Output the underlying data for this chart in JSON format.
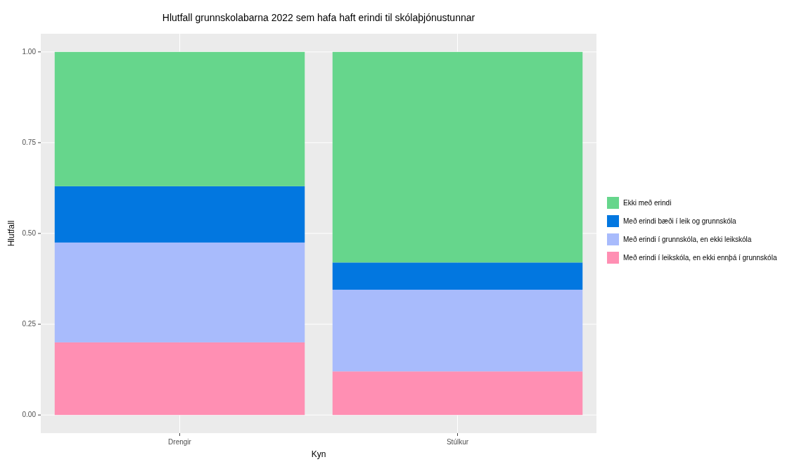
{
  "chart_data": {
    "type": "bar",
    "title": "Hlutfall grunnskolabarna 2022 sem hafa haft erindi til skólaþjónustunnar",
    "xlabel": "Kyn",
    "ylabel": "Hlutfall",
    "categories": [
      "Drengir",
      "Stúlkur"
    ],
    "stacked": true,
    "series": [
      {
        "name": "Með erindi í leikskóla, en ekki ennþá í grunnskóla",
        "color": "#ff8fb3",
        "values": [
          0.2,
          0.12
        ]
      },
      {
        "name": "Með erindi í grunnskóla, en ekki leikskóla",
        "color": "#a8bbfc",
        "values": [
          0.275,
          0.225
        ]
      },
      {
        "name": "Með erindi bæði í leik og grunnskóla",
        "color": "#0277e0",
        "values": [
          0.155,
          0.075
        ]
      },
      {
        "name": "Ekki með erindi",
        "color": "#66d68c",
        "values": [
          0.37,
          0.58
        ]
      }
    ],
    "ylim": [
      -0.05,
      1.05
    ],
    "yticks": [
      {
        "value": 0,
        "label": "0.00"
      },
      {
        "value": 0.25,
        "label": "0.25"
      },
      {
        "value": 0.5,
        "label": "0.50"
      },
      {
        "value": 0.75,
        "label": "0.75"
      },
      {
        "value": 1,
        "label": "1.00"
      }
    ],
    "grid": true,
    "legend": "right"
  }
}
